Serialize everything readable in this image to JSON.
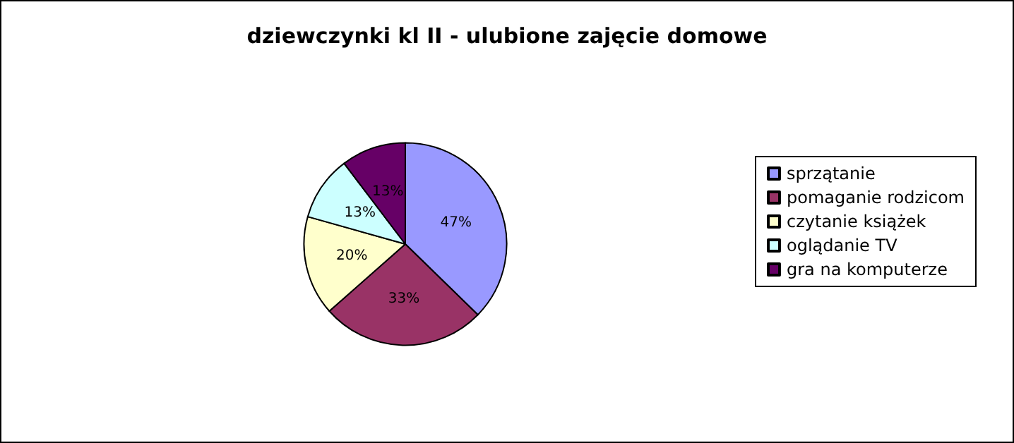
{
  "chart_data": {
    "type": "pie",
    "title": "dziewczynki kl II - ulubione zajęcie domowe",
    "categories": [
      "sprzątanie",
      "pomaganie rodzicom",
      "czytanie książek",
      "oglądanie TV",
      "gra na komputerze"
    ],
    "values": [
      47,
      33,
      20,
      13,
      13
    ],
    "value_labels": [
      "47%",
      "33%",
      "20%",
      "13%",
      "13%"
    ],
    "colors": [
      "#9999ff",
      "#993366",
      "#ffffcc",
      "#ccffff",
      "#660066"
    ],
    "legend": "right"
  }
}
